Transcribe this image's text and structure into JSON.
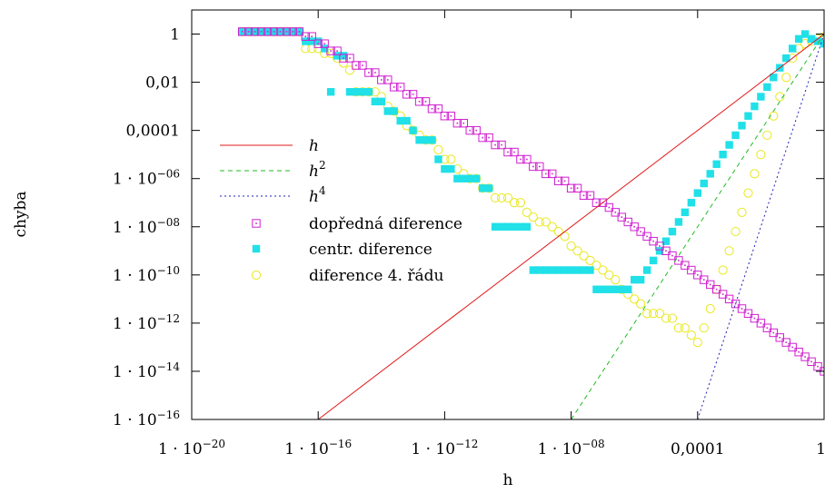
{
  "chart_data": {
    "type": "scatter",
    "title": "",
    "xlabel": "h",
    "ylabel": "chyba",
    "x_scale": "log",
    "y_scale": "log",
    "xlim": [
      1e-20,
      1
    ],
    "ylim": [
      1e-16,
      10
    ],
    "grid": false,
    "legend_position": "left",
    "x_ticks": [
      {
        "value": 1e-20,
        "label": "1 · 10",
        "exp": "−20"
      },
      {
        "value": 1e-16,
        "label": "1 · 10",
        "exp": "−16"
      },
      {
        "value": 1e-12,
        "label": "1 · 10",
        "exp": "−12"
      },
      {
        "value": 1e-08,
        "label": "1 · 10",
        "exp": "−08"
      },
      {
        "value": 0.0001,
        "label": "0,0001",
        "exp": ""
      },
      {
        "value": 1,
        "label": "1",
        "exp": ""
      }
    ],
    "y_ticks": [
      {
        "value": 1,
        "label": "1",
        "exp": ""
      },
      {
        "value": 0.01,
        "label": "0,01",
        "exp": ""
      },
      {
        "value": 0.0001,
        "label": "0,0001",
        "exp": ""
      },
      {
        "value": 1e-06,
        "label": "1 · 10",
        "exp": "−06"
      },
      {
        "value": 1e-08,
        "label": "1 · 10",
        "exp": "−08"
      },
      {
        "value": 1e-10,
        "label": "1 · 10",
        "exp": "−10"
      },
      {
        "value": 1e-12,
        "label": "1 · 10",
        "exp": "−12"
      },
      {
        "value": 1e-14,
        "label": "1 · 10",
        "exp": "−14"
      },
      {
        "value": 1e-16,
        "label": "1 · 10",
        "exp": "−16"
      }
    ],
    "lines": [
      {
        "name": "h",
        "base": "h",
        "exp": "",
        "power": 1,
        "color": "#e0181a",
        "dash": ""
      },
      {
        "name": "h2",
        "base": "h",
        "exp": "2",
        "power": 2,
        "color": "#22bb22",
        "dash": "5,4"
      },
      {
        "name": "h4",
        "base": "h",
        "exp": "4",
        "power": 4,
        "color": "#2222bb",
        "dash": "2,3"
      }
    ],
    "series": [
      {
        "name": "dopředná diference",
        "marker": "square-dot",
        "color": "#d020d0",
        "x_exp": [
          -18.4,
          -18.2,
          -18.0,
          -17.8,
          -17.6,
          -17.4,
          -17.2,
          -17.0,
          -16.8,
          -16.6,
          -16.4,
          -16.2,
          -16.0,
          -15.8,
          -15.6,
          -15.4,
          -15.2,
          -15.0,
          -14.8,
          -14.6,
          -14.4,
          -14.2,
          -14.0,
          -13.8,
          -13.6,
          -13.4,
          -13.2,
          -13.0,
          -12.8,
          -12.6,
          -12.4,
          -12.2,
          -12.0,
          -11.8,
          -11.6,
          -11.4,
          -11.2,
          -11.0,
          -10.8,
          -10.6,
          -10.4,
          -10.2,
          -10.0,
          -9.8,
          -9.6,
          -9.4,
          -9.2,
          -9.0,
          -8.8,
          -8.6,
          -8.4,
          -8.2,
          -8.0,
          -7.8,
          -7.6,
          -7.4,
          -7.2,
          -7.0,
          -6.8,
          -6.6,
          -6.4,
          -6.2,
          -6.0,
          -5.8,
          -5.6,
          -5.4,
          -5.2,
          -5.0,
          -4.8,
          -4.6,
          -4.4,
          -4.2,
          -4.0,
          -3.8,
          -3.6,
          -3.4,
          -3.2,
          -3.0,
          -2.8,
          -2.6,
          -2.4,
          -2.2,
          -2.0,
          -1.8,
          -1.6,
          -1.4,
          -1.2,
          -1.0,
          -0.8,
          -0.6,
          -0.4,
          -0.2,
          0.0
        ],
        "y_exp": [
          0.1,
          0.1,
          0.1,
          0.1,
          0.1,
          0.1,
          0.1,
          0.1,
          0.1,
          0.1,
          -0.1,
          -0.1,
          -0.4,
          -0.4,
          -0.7,
          -0.7,
          -1.0,
          -1.0,
          -1.3,
          -1.3,
          -1.6,
          -1.6,
          -1.9,
          -1.9,
          -2.2,
          -2.2,
          -2.5,
          -2.5,
          -2.8,
          -2.8,
          -3.1,
          -3.1,
          -3.4,
          -3.4,
          -3.7,
          -3.7,
          -4.0,
          -4.0,
          -4.3,
          -4.3,
          -4.6,
          -4.6,
          -4.9,
          -4.9,
          -5.2,
          -5.2,
          -5.5,
          -5.5,
          -5.8,
          -5.8,
          -6.1,
          -6.1,
          -6.4,
          -6.4,
          -6.7,
          -6.7,
          -7.0,
          -7.0,
          -7.2,
          -7.4,
          -7.6,
          -7.8,
          -8.0,
          -8.2,
          -8.4,
          -8.6,
          -8.8,
          -9.0,
          -9.2,
          -9.4,
          -9.6,
          -9.8,
          -10.0,
          -10.2,
          -10.4,
          -10.6,
          -10.8,
          -11.0,
          -11.2,
          -11.4,
          -11.6,
          -11.8,
          -12.0,
          -12.2,
          -12.4,
          -12.6,
          -12.8,
          -13.0,
          -13.2,
          -13.4,
          -13.6,
          -13.8,
          -14.0
        ]
      },
      {
        "name": "centr. diference",
        "marker": "filled-square",
        "color": "#20e0e8",
        "x_exp": [
          -18.4,
          -18.2,
          -18.0,
          -17.8,
          -17.6,
          -17.4,
          -17.2,
          -17.0,
          -16.8,
          -16.6,
          -16.4,
          -16.2,
          -16.0,
          -15.8,
          -15.6,
          -15.4,
          -15.2,
          -15.0,
          -14.8,
          -14.6,
          -14.4,
          -14.2,
          -14.0,
          -13.8,
          -13.6,
          -13.4,
          -13.2,
          -13.0,
          -12.8,
          -12.6,
          -12.4,
          -12.2,
          -12.0,
          -11.8,
          -11.6,
          -11.4,
          -11.2,
          -11.0,
          -10.8,
          -10.6,
          -10.4,
          -10.2,
          -10.0,
          -9.8,
          -9.6,
          -9.4,
          -9.2,
          -9.0,
          -8.8,
          -8.6,
          -8.4,
          -8.2,
          -8.0,
          -7.8,
          -7.6,
          -7.4,
          -7.2,
          -7.0,
          -6.8,
          -6.6,
          -6.4,
          -6.2,
          -6.0,
          -5.8,
          -5.6,
          -5.4,
          -5.2,
          -5.0,
          -4.8,
          -4.6,
          -4.4,
          -4.2,
          -4.0,
          -3.8,
          -3.6,
          -3.4,
          -3.2,
          -3.0,
          -2.8,
          -2.6,
          -2.4,
          -2.2,
          -2.0,
          -1.8,
          -1.6,
          -1.4,
          -1.2,
          -1.0,
          -0.8,
          -0.6,
          -0.4,
          -0.2,
          0.0
        ],
        "y_exp": [
          0.1,
          0.1,
          0.1,
          0.1,
          0.1,
          0.1,
          0.1,
          0.1,
          0.1,
          0.1,
          -0.3,
          -0.3,
          -0.3,
          -0.6,
          -2.4,
          -0.9,
          -0.9,
          -2.4,
          -2.4,
          -2.4,
          -2.4,
          -2.8,
          -2.8,
          -3.2,
          -3.2,
          -3.6,
          -3.6,
          -4.0,
          -4.4,
          -4.4,
          -4.4,
          -5.2,
          -5.6,
          -5.6,
          -6.0,
          -6.0,
          -6.0,
          -6.0,
          -6.4,
          -6.4,
          -8.0,
          -8.0,
          -8.0,
          -8.0,
          -8.0,
          -8.0,
          -9.8,
          -9.8,
          -9.8,
          -9.8,
          -9.8,
          -9.8,
          -9.8,
          -9.8,
          -9.8,
          -9.8,
          -10.6,
          -10.6,
          -10.6,
          -10.6,
          -10.6,
          -10.6,
          -10.2,
          -10.2,
          -9.8,
          -9.4,
          -9.0,
          -8.6,
          -8.2,
          -7.8,
          -7.4,
          -7.0,
          -6.6,
          -6.2,
          -5.8,
          -5.4,
          -5.0,
          -4.6,
          -4.2,
          -3.8,
          -3.4,
          -3.0,
          -2.6,
          -2.2,
          -1.8,
          -1.4,
          -1.0,
          -0.6,
          -0.2,
          0.0,
          -0.2,
          -0.3,
          -0.4
        ],
        "note": ""
      },
      {
        "name": "diference 4. řádu",
        "marker": "open-circle",
        "color": "#e8e820",
        "x_exp": [
          -18.4,
          -18.2,
          -18.0,
          -17.8,
          -17.6,
          -17.4,
          -17.2,
          -17.0,
          -16.8,
          -16.6,
          -16.4,
          -16.2,
          -16.0,
          -15.8,
          -15.6,
          -15.4,
          -15.2,
          -15.0,
          -14.8,
          -14.6,
          -14.4,
          -14.2,
          -14.0,
          -13.8,
          -13.6,
          -13.4,
          -13.2,
          -13.0,
          -12.8,
          -12.6,
          -12.4,
          -12.2,
          -12.0,
          -11.8,
          -11.6,
          -11.4,
          -11.2,
          -11.0,
          -10.8,
          -10.6,
          -10.4,
          -10.2,
          -10.0,
          -9.8,
          -9.6,
          -9.4,
          -9.2,
          -9.0,
          -8.8,
          -8.6,
          -8.4,
          -8.2,
          -8.0,
          -7.8,
          -7.6,
          -7.4,
          -7.2,
          -7.0,
          -6.8,
          -6.6,
          -6.4,
          -6.2,
          -6.0,
          -5.8,
          -5.6,
          -5.4,
          -5.2,
          -5.0,
          -4.8,
          -4.6,
          -4.4,
          -4.2,
          -4.0,
          -3.8,
          -3.6,
          -3.4,
          -3.2,
          -3.0,
          -2.8,
          -2.6,
          -2.4,
          -2.2,
          -2.0,
          -1.8,
          -1.6,
          -1.4,
          -1.2,
          -1.0,
          -0.8,
          -0.6,
          -0.4,
          -0.2,
          0.0
        ],
        "y_exp": [
          0.1,
          0.1,
          0.1,
          0.1,
          0.1,
          0.1,
          0.1,
          0.1,
          0.1,
          0.1,
          -0.6,
          -0.6,
          -0.6,
          -0.8,
          -0.8,
          -1.0,
          -1.2,
          -1.5,
          -2.4,
          -2.4,
          -2.4,
          -2.4,
          -2.6,
          -3.0,
          -3.2,
          -3.4,
          -3.8,
          -4.0,
          -4.2,
          -4.4,
          -4.4,
          -4.8,
          -5.2,
          -5.2,
          -5.6,
          -5.8,
          -6.0,
          -6.0,
          -6.4,
          -6.4,
          -6.8,
          -6.8,
          -6.8,
          -7.0,
          -7.0,
          -7.4,
          -7.6,
          -7.8,
          -7.8,
          -8.0,
          -8.2,
          -8.4,
          -8.8,
          -9.0,
          -9.2,
          -9.4,
          -9.6,
          -9.8,
          -10.0,
          -10.2,
          -10.6,
          -10.8,
          -11.0,
          -11.2,
          -11.6,
          -11.6,
          -11.6,
          -11.8,
          -11.8,
          -12.2,
          -12.2,
          -12.5,
          -12.8,
          -12.2,
          -11.4,
          -10.6,
          -9.8,
          -9.0,
          -8.2,
          -7.4,
          -6.6,
          -5.8,
          -5.0,
          -4.2,
          -3.4,
          -2.6,
          -1.8,
          -1.0,
          -0.6,
          -0.4,
          -0.3,
          -0.2,
          -0.1
        ]
      }
    ]
  }
}
